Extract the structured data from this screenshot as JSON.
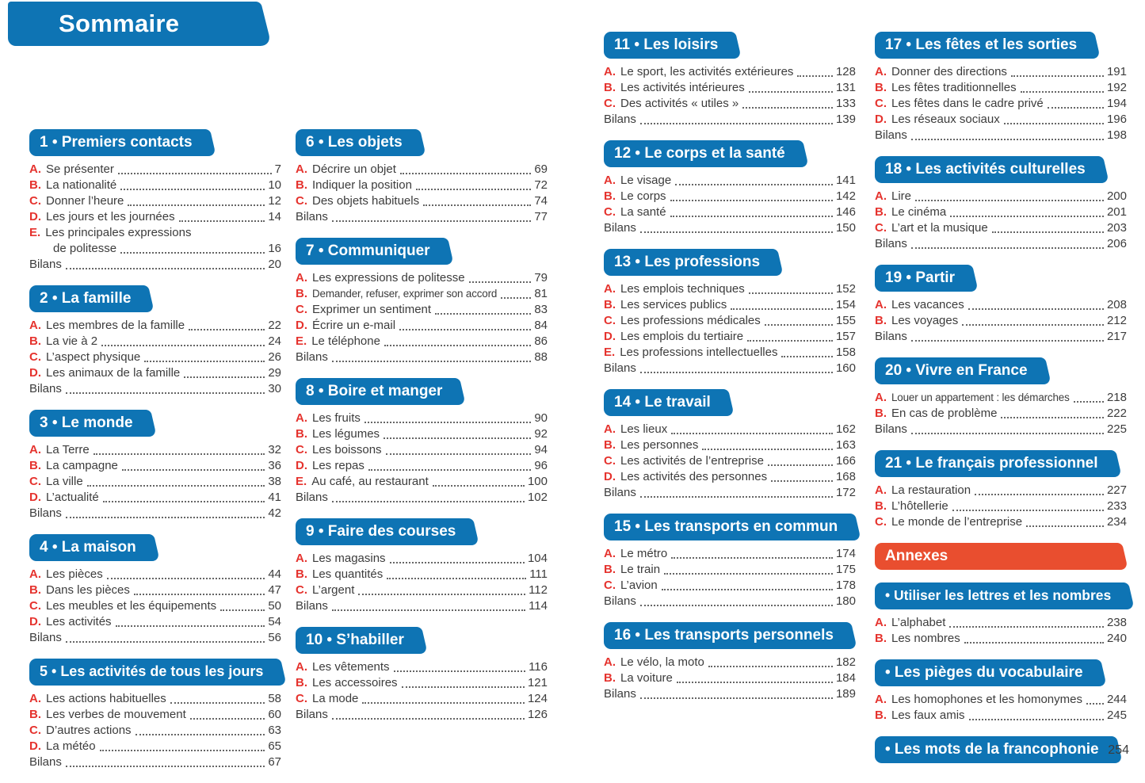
{
  "page": {
    "title": "Sommaire",
    "corner_page_number": "254"
  },
  "colors": {
    "banner_blue": "#0e74b4",
    "annex_orange": "#e94e2f",
    "letter_red": "#e5332e",
    "text": "#3c3c3c"
  },
  "columns": [
    {
      "sections": [
        {
          "style": "chapter",
          "header": "1 • Premiers contacts",
          "items": [
            {
              "label": "A.",
              "text": "Se présenter",
              "page": "7"
            },
            {
              "label": "B.",
              "text": "La nationalité",
              "page": "10"
            },
            {
              "label": "C.",
              "text": "Donner l’heure",
              "page": "12"
            },
            {
              "label": "D.",
              "text": "Les jours et les journées",
              "page": "14"
            },
            {
              "label": "E.",
              "text": "Les principales expressions",
              "page": ""
            },
            {
              "label": "",
              "text": "de politesse",
              "page": "16",
              "indent": true
            },
            {
              "label": "",
              "text": "Bilans",
              "page": "20"
            }
          ]
        },
        {
          "style": "chapter",
          "header": "2 • La famille",
          "items": [
            {
              "label": "A.",
              "text": "Les membres de la famille",
              "page": "22"
            },
            {
              "label": "B.",
              "text": "La vie à 2",
              "page": "24"
            },
            {
              "label": "C.",
              "text": "L’aspect physique",
              "page": "26"
            },
            {
              "label": "D.",
              "text": "Les animaux de la famille",
              "page": "29"
            },
            {
              "label": "",
              "text": "Bilans",
              "page": "30"
            }
          ]
        },
        {
          "style": "chapter",
          "header": "3 • Le monde",
          "items": [
            {
              "label": "A.",
              "text": "La Terre",
              "page": "32"
            },
            {
              "label": "B.",
              "text": "La campagne",
              "page": "36"
            },
            {
              "label": "C.",
              "text": "La ville",
              "page": "38"
            },
            {
              "label": "D.",
              "text": "L’actualité",
              "page": "41"
            },
            {
              "label": "",
              "text": "Bilans",
              "page": "42"
            }
          ]
        },
        {
          "style": "chapter",
          "header": "4 • La maison",
          "items": [
            {
              "label": "A.",
              "text": "Les pièces",
              "page": "44"
            },
            {
              "label": "B.",
              "text": "Dans les pièces",
              "page": "47"
            },
            {
              "label": "C.",
              "text": "Les meubles et les équipements",
              "page": "50"
            },
            {
              "label": "D.",
              "text": "Les activités",
              "page": "54"
            },
            {
              "label": "",
              "text": "Bilans",
              "page": "56"
            }
          ]
        },
        {
          "style": "chapter",
          "header": "5 • Les activités de tous les jours",
          "items": [
            {
              "label": "A.",
              "text": "Les actions habituelles",
              "page": "58"
            },
            {
              "label": "B.",
              "text": "Les verbes de mouvement",
              "page": "60"
            },
            {
              "label": "C.",
              "text": "D’autres actions",
              "page": "63"
            },
            {
              "label": "D.",
              "text": "La météo",
              "page": "65"
            },
            {
              "label": "",
              "text": "Bilans",
              "page": "67"
            }
          ]
        }
      ]
    },
    {
      "sections": [
        {
          "style": "chapter",
          "header": "6 • Les objets",
          "items": [
            {
              "label": "A.",
              "text": "Décrire un objet",
              "page": "69"
            },
            {
              "label": "B.",
              "text": "Indiquer la position",
              "page": "72"
            },
            {
              "label": "C.",
              "text": "Des objets habituels",
              "page": "74"
            },
            {
              "label": "",
              "text": "Bilans",
              "page": "77"
            }
          ]
        },
        {
          "style": "chapter",
          "header": "7 • Communiquer",
          "items": [
            {
              "label": "A.",
              "text": "Les expressions de politesse",
              "page": "79"
            },
            {
              "label": "B.",
              "text": "Demander, refuser, exprimer son accord",
              "page": "81",
              "condensed": true
            },
            {
              "label": "C.",
              "text": "Exprimer un sentiment",
              "page": "83"
            },
            {
              "label": "D.",
              "text": "Écrire un e-mail",
              "page": "84"
            },
            {
              "label": "E.",
              "text": "Le téléphone",
              "page": "86"
            },
            {
              "label": "",
              "text": "Bilans",
              "page": "88"
            }
          ]
        },
        {
          "style": "chapter",
          "header": "8 • Boire et manger",
          "items": [
            {
              "label": "A.",
              "text": "Les fruits",
              "page": "90"
            },
            {
              "label": "B.",
              "text": "Les légumes",
              "page": "92"
            },
            {
              "label": "C.",
              "text": "Les boissons",
              "page": "94"
            },
            {
              "label": "D.",
              "text": "Les repas",
              "page": "96"
            },
            {
              "label": "E.",
              "text": "Au café, au restaurant",
              "page": "100"
            },
            {
              "label": "",
              "text": "Bilans",
              "page": "102"
            }
          ]
        },
        {
          "style": "chapter",
          "header": "9 • Faire des courses",
          "items": [
            {
              "label": "A.",
              "text": "Les magasins",
              "page": "104"
            },
            {
              "label": "B.",
              "text": "Les quantités",
              "page": "111"
            },
            {
              "label": "C.",
              "text": "L’argent",
              "page": "112"
            },
            {
              "label": "",
              "text": "Bilans",
              "page": "114"
            }
          ]
        },
        {
          "style": "chapter",
          "header": "10 • S’habiller",
          "items": [
            {
              "label": "A.",
              "text": "Les vêtements",
              "page": "116"
            },
            {
              "label": "B.",
              "text": "Les accessoires",
              "page": "121"
            },
            {
              "label": "C.",
              "text": "La mode",
              "page": "124"
            },
            {
              "label": "",
              "text": "Bilans",
              "page": "126"
            }
          ]
        }
      ]
    },
    {
      "sections": [
        {
          "style": "chapter",
          "header": "11 • Les loisirs",
          "items": [
            {
              "label": "A.",
              "text": "Le sport, les activités extérieures",
              "page": "128"
            },
            {
              "label": "B.",
              "text": "Les activités intérieures",
              "page": "131"
            },
            {
              "label": "C.",
              "text": "Des activités « utiles »",
              "page": "133"
            },
            {
              "label": "",
              "text": "Bilans",
              "page": "139"
            }
          ]
        },
        {
          "style": "chapter",
          "header": "12 • Le corps et la santé",
          "items": [
            {
              "label": "A.",
              "text": "Le visage",
              "page": "141"
            },
            {
              "label": "B.",
              "text": "Le corps",
              "page": "142"
            },
            {
              "label": "C.",
              "text": "La santé",
              "page": "146"
            },
            {
              "label": "",
              "text": "Bilans",
              "page": "150"
            }
          ]
        },
        {
          "style": "chapter",
          "header": "13 • Les professions",
          "items": [
            {
              "label": "A.",
              "text": "Les emplois techniques",
              "page": "152"
            },
            {
              "label": "B.",
              "text": "Les services publics",
              "page": "154"
            },
            {
              "label": "C.",
              "text": "Les professions médicales",
              "page": "155"
            },
            {
              "label": "D.",
              "text": "Les emplois du tertiaire",
              "page": "157"
            },
            {
              "label": "E.",
              "text": "Les professions intellectuelles",
              "page": "158"
            },
            {
              "label": "",
              "text": "Bilans",
              "page": "160"
            }
          ]
        },
        {
          "style": "chapter",
          "header": "14 • Le travail",
          "items": [
            {
              "label": "A.",
              "text": "Les lieux",
              "page": "162"
            },
            {
              "label": "B.",
              "text": "Les personnes",
              "page": "163"
            },
            {
              "label": "C.",
              "text": "Les activités de l’entreprise",
              "page": "166"
            },
            {
              "label": "D.",
              "text": "Les activités des personnes",
              "page": "168"
            },
            {
              "label": "",
              "text": "Bilans",
              "page": "172"
            }
          ]
        },
        {
          "style": "chapter",
          "header": "15 • Les transports en commun",
          "items": [
            {
              "label": "A.",
              "text": "Le métro",
              "page": "174"
            },
            {
              "label": "B.",
              "text": "Le train",
              "page": "175"
            },
            {
              "label": "C.",
              "text": "L’avion",
              "page": "178"
            },
            {
              "label": "",
              "text": "Bilans",
              "page": "180"
            }
          ]
        },
        {
          "style": "chapter",
          "header": "16 • Les transports personnels",
          "items": [
            {
              "label": "A.",
              "text": "Le vélo, la moto",
              "page": "182"
            },
            {
              "label": "B.",
              "text": "La voiture",
              "page": "184"
            },
            {
              "label": "",
              "text": "Bilans",
              "page": "189"
            }
          ]
        }
      ]
    },
    {
      "sections": [
        {
          "style": "chapter",
          "header": "17 • Les fêtes et les sorties",
          "items": [
            {
              "label": "A.",
              "text": "Donner des directions",
              "page": "191"
            },
            {
              "label": "B.",
              "text": "Les fêtes traditionnelles",
              "page": "192"
            },
            {
              "label": "C.",
              "text": "Les fêtes dans le cadre privé",
              "page": "194"
            },
            {
              "label": "D.",
              "text": "Les réseaux sociaux",
              "page": "196"
            },
            {
              "label": "",
              "text": "Bilans",
              "page": "198"
            }
          ]
        },
        {
          "style": "chapter",
          "header": "18 • Les activités culturelles",
          "items": [
            {
              "label": "A.",
              "text": "Lire",
              "page": "200"
            },
            {
              "label": "B.",
              "text": "Le cinéma",
              "page": "201"
            },
            {
              "label": "C.",
              "text": "L’art et la musique",
              "page": "203"
            },
            {
              "label": "",
              "text": "Bilans",
              "page": "206"
            }
          ]
        },
        {
          "style": "chapter",
          "header": "19 • Partir",
          "items": [
            {
              "label": "A.",
              "text": "Les vacances",
              "page": "208"
            },
            {
              "label": "B.",
              "text": "Les voyages",
              "page": "212"
            },
            {
              "label": "",
              "text": "Bilans",
              "page": "217"
            }
          ]
        },
        {
          "style": "chapter",
          "header": "20 • Vivre en France",
          "items": [
            {
              "label": "A.",
              "text": "Louer un appartement : les démarches",
              "page": "218",
              "condensed": true
            },
            {
              "label": "B.",
              "text": "En cas de problème",
              "page": "222"
            },
            {
              "label": "",
              "text": "Bilans",
              "page": "225"
            }
          ]
        },
        {
          "style": "chapter",
          "header": "21 • Le français professionnel",
          "items": [
            {
              "label": "A.",
              "text": "La restauration",
              "page": "227"
            },
            {
              "label": "B.",
              "text": "L’hôtellerie",
              "page": "233"
            },
            {
              "label": "C.",
              "text": "Le monde de l’entreprise",
              "page": "234"
            }
          ]
        },
        {
          "style": "annex",
          "header": "Annexes",
          "items": []
        },
        {
          "style": "chapter",
          "header": "• Utiliser les lettres et les nombres",
          "items": [
            {
              "label": "A.",
              "text": "L’alphabet",
              "page": "238"
            },
            {
              "label": "B.",
              "text": "Les nombres",
              "page": "240"
            }
          ]
        },
        {
          "style": "chapter",
          "header": "• Les pièges du vocabulaire",
          "items": [
            {
              "label": "A.",
              "text": "Les homophones et les homonymes",
              "page": "244"
            },
            {
              "label": "B.",
              "text": "Les faux amis",
              "page": "245"
            }
          ]
        },
        {
          "style": "chapter",
          "header": "• Les mots de la francophonie",
          "items": []
        }
      ]
    }
  ]
}
